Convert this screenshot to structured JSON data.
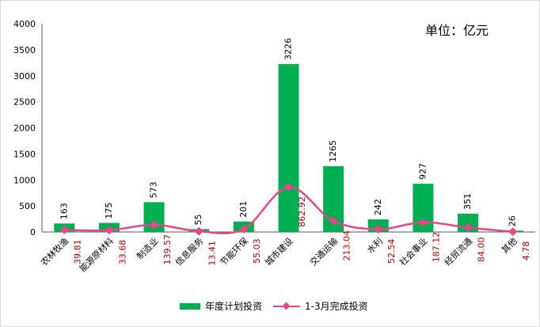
{
  "chart_data": {
    "type": "bar",
    "unit_label": "单位：亿元",
    "categories": [
      "农林牧渔",
      "能源原材料",
      "制造业",
      "信息服务",
      "节能环保",
      "城市建设",
      "交通运输",
      "水利",
      "社会事业",
      "经贸流通",
      "其他"
    ],
    "series": [
      {
        "name": "年度计划投资",
        "type": "bar",
        "values": [
          163,
          175,
          573,
          55,
          201,
          3226,
          1265,
          242,
          927,
          351,
          26
        ],
        "labels": [
          "163",
          "175",
          "573",
          "55",
          "201",
          "3226",
          "1265",
          "242",
          "927",
          "351",
          "26"
        ]
      },
      {
        "name": "1-3月完成投资",
        "type": "line",
        "values": [
          39.81,
          33.68,
          139.57,
          13.41,
          55.03,
          862.92,
          213.04,
          52.54,
          187.12,
          84.0,
          4.78
        ],
        "labels": [
          "39.81",
          "33.68",
          "139.57",
          "13.41",
          "55.03",
          "862.92",
          "213.04",
          "52.54",
          "187.12",
          "84.00",
          "4.78"
        ]
      }
    ],
    "ylim": [
      0,
      4000
    ],
    "yticks": [
      0,
      500,
      1000,
      1500,
      2000,
      2500,
      3000,
      3500,
      4000
    ],
    "legend_position": "bottom",
    "grid": false
  },
  "colors": {
    "bar": "#00b050",
    "line": "#e8458b",
    "line_label": "#c00000",
    "bar_label": "#000000",
    "axis": "#595959"
  }
}
